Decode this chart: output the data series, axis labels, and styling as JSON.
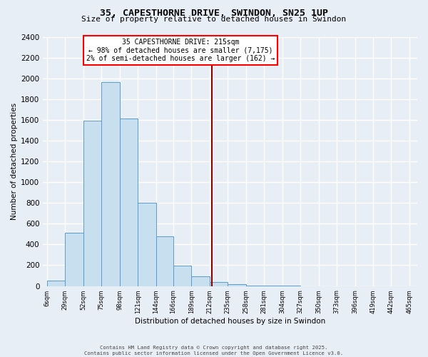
{
  "title": "35, CAPESTHORNE DRIVE, SWINDON, SN25 1UP",
  "subtitle": "Size of property relative to detached houses in Swindon",
  "xlabel": "Distribution of detached houses by size in Swindon",
  "ylabel": "Number of detached properties",
  "bar_color": "#c8dff0",
  "bar_edge_color": "#5b9bd5",
  "background_color": "#e8eef5",
  "grid_color": "#ffffff",
  "vline_color": "#8b0000",
  "bin_labels": [
    "6sqm",
    "29sqm",
    "52sqm",
    "75sqm",
    "98sqm",
    "121sqm",
    "144sqm",
    "166sqm",
    "189sqm",
    "212sqm",
    "235sqm",
    "258sqm",
    "281sqm",
    "304sqm",
    "327sqm",
    "350sqm",
    "373sqm",
    "396sqm",
    "419sqm",
    "442sqm",
    "465sqm"
  ],
  "bin_edges": [
    6,
    29,
    52,
    75,
    98,
    121,
    144,
    166,
    189,
    212,
    235,
    258,
    281,
    304,
    327,
    350,
    373,
    396,
    419,
    442,
    465
  ],
  "bar_heights": [
    50,
    510,
    1590,
    1960,
    1610,
    800,
    480,
    195,
    90,
    35,
    15,
    5,
    2,
    1,
    0,
    0,
    0,
    0,
    0,
    0
  ],
  "vline_x": 215,
  "annotation_title": "35 CAPESTHORNE DRIVE: 215sqm",
  "annotation_line1": "← 98% of detached houses are smaller (7,175)",
  "annotation_line2": "2% of semi-detached houses are larger (162) →",
  "ylim": [
    0,
    2400
  ],
  "yticks": [
    0,
    200,
    400,
    600,
    800,
    1000,
    1200,
    1400,
    1600,
    1800,
    2000,
    2200,
    2400
  ],
  "footer_line1": "Contains HM Land Registry data © Crown copyright and database right 2025.",
  "footer_line2": "Contains public sector information licensed under the Open Government Licence v3.0."
}
